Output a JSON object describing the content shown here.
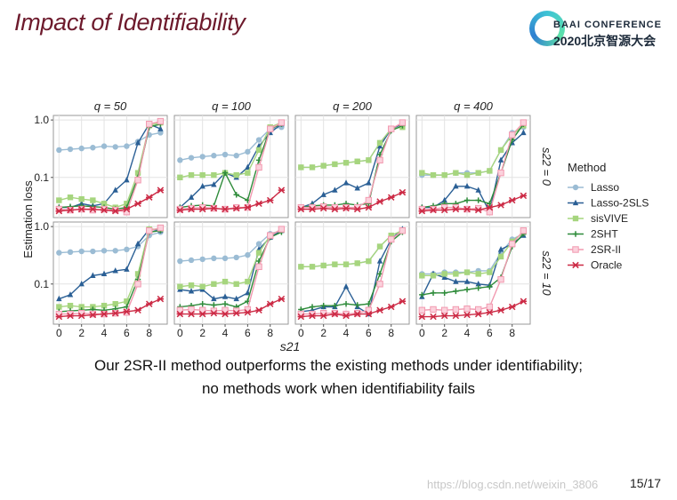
{
  "slide": {
    "title": "Impact of Identifiability",
    "logo": {
      "line1": "BAAI CONFERENCE",
      "line2": "2020北京智源大会"
    },
    "caption_line1": "Our 2SR-II method outperforms the existing methods under identifiability;",
    "caption_line2": "no methods work when identifiability fails",
    "watermark": "https://blog.csdn.net/weixin_3806",
    "page": "15/17"
  },
  "chart_data": {
    "type": "line",
    "ylabel": "Estimation loss",
    "xlabel": "s21",
    "col_titles": [
      "q = 50",
      "q = 100",
      "q = 200",
      "q = 400"
    ],
    "row_titles": [
      "s22 = 0",
      "s22 = 10"
    ],
    "x": [
      0,
      1,
      2,
      3,
      4,
      5,
      6,
      7,
      8,
      9
    ],
    "xticks": [
      0,
      2,
      4,
      6,
      8
    ],
    "yticks": [
      0.1,
      1.0
    ],
    "ytick_labels": [
      "0.1",
      "1.0"
    ],
    "ylim": [
      0.02,
      1.2
    ],
    "yscale": "log",
    "legend_title": "Method",
    "methods": [
      {
        "name": "Lasso",
        "color": "#9bbcd4",
        "marker": "circle"
      },
      {
        "name": "Lasso-2SLS",
        "color": "#2a5f95",
        "marker": "triangle"
      },
      {
        "name": "sisVIVE",
        "color": "#a6d57e",
        "marker": "square"
      },
      {
        "name": "2SHT",
        "color": "#2e8b3a",
        "marker": "plus"
      },
      {
        "name": "2SR-II",
        "color": "#f29ab0",
        "marker": "square-open"
      },
      {
        "name": "Oracle",
        "color": "#cc2a45",
        "marker": "star"
      }
    ],
    "panels": [
      [
        {
          "Lasso": [
            0.3,
            0.31,
            0.32,
            0.33,
            0.35,
            0.34,
            0.35,
            0.42,
            0.55,
            0.6
          ],
          "Lasso-2SLS": [
            0.03,
            0.03,
            0.035,
            0.032,
            0.035,
            0.06,
            0.09,
            0.4,
            0.85,
            0.7
          ],
          "sisVIVE": [
            0.04,
            0.045,
            0.042,
            0.04,
            0.035,
            0.03,
            0.035,
            0.12,
            0.8,
            0.9
          ],
          "2SHT": [
            0.03,
            0.031,
            0.032,
            0.031,
            0.03,
            0.028,
            0.03,
            0.1,
            0.75,
            0.85
          ],
          "2SR-II": [
            0.028,
            0.027,
            0.028,
            0.027,
            0.028,
            0.027,
            0.025,
            0.09,
            0.85,
            0.95
          ],
          "Oracle": [
            0.026,
            0.027,
            0.028,
            0.028,
            0.027,
            0.026,
            0.028,
            0.035,
            0.045,
            0.06
          ]
        },
        {
          "Lasso": [
            0.2,
            0.22,
            0.23,
            0.24,
            0.25,
            0.24,
            0.28,
            0.45,
            0.7,
            0.75
          ],
          "Lasso-2SLS": [
            0.03,
            0.045,
            0.07,
            0.075,
            0.12,
            0.1,
            0.15,
            0.35,
            0.6,
            0.85
          ],
          "sisVIVE": [
            0.1,
            0.11,
            0.11,
            0.11,
            0.12,
            0.11,
            0.12,
            0.3,
            0.75,
            0.9
          ],
          "2SHT": [
            0.03,
            0.032,
            0.033,
            0.032,
            0.12,
            0.05,
            0.04,
            0.2,
            0.7,
            0.85
          ],
          "2SR-II": [
            0.028,
            0.029,
            0.03,
            0.029,
            0.028,
            0.03,
            0.03,
            0.15,
            0.7,
            0.9
          ],
          "Oracle": [
            0.027,
            0.028,
            0.028,
            0.029,
            0.028,
            0.029,
            0.03,
            0.035,
            0.04,
            0.06
          ]
        },
        {
          "Lasso": [
            0.15,
            0.15,
            0.16,
            0.17,
            0.18,
            0.19,
            0.2,
            0.4,
            0.7,
            0.75
          ],
          "Lasso-2SLS": [
            0.03,
            0.035,
            0.05,
            0.06,
            0.08,
            0.065,
            0.08,
            0.35,
            0.7,
            0.85
          ],
          "sisVIVE": [
            0.15,
            0.15,
            0.16,
            0.17,
            0.18,
            0.19,
            0.2,
            0.4,
            0.7,
            0.75
          ],
          "2SHT": [
            0.03,
            0.032,
            0.033,
            0.033,
            0.035,
            0.033,
            0.035,
            0.25,
            0.65,
            0.8
          ],
          "2SR-II": [
            0.03,
            0.03,
            0.031,
            0.03,
            0.03,
            0.03,
            0.04,
            0.2,
            0.7,
            0.9
          ],
          "Oracle": [
            0.028,
            0.028,
            0.029,
            0.028,
            0.029,
            0.028,
            0.03,
            0.038,
            0.045,
            0.055
          ]
        },
        {
          "Lasso": [
            0.11,
            0.11,
            0.11,
            0.12,
            0.12,
            0.12,
            0.13,
            0.3,
            0.6,
            0.75
          ],
          "Lasso-2SLS": [
            0.03,
            0.03,
            0.04,
            0.07,
            0.07,
            0.06,
            0.025,
            0.2,
            0.4,
            0.6
          ],
          "sisVIVE": [
            0.12,
            0.11,
            0.11,
            0.12,
            0.11,
            0.12,
            0.13,
            0.3,
            0.55,
            0.8
          ],
          "2SHT": [
            0.03,
            0.032,
            0.035,
            0.035,
            0.04,
            0.04,
            0.035,
            0.12,
            0.45,
            0.85
          ],
          "2SR-II": [
            0.028,
            0.028,
            0.03,
            0.03,
            0.028,
            0.029,
            0.025,
            0.12,
            0.55,
            0.9
          ],
          "Oracle": [
            0.026,
            0.027,
            0.027,
            0.028,
            0.028,
            0.027,
            0.03,
            0.033,
            0.04,
            0.048
          ]
        }
      ],
      [
        {
          "Lasso": [
            0.35,
            0.36,
            0.37,
            0.37,
            0.38,
            0.38,
            0.4,
            0.45,
            0.7,
            0.8
          ],
          "Lasso-2SLS": [
            0.055,
            0.065,
            0.1,
            0.14,
            0.15,
            0.17,
            0.18,
            0.5,
            0.9,
            0.85
          ],
          "sisVIVE": [
            0.04,
            0.042,
            0.04,
            0.04,
            0.042,
            0.045,
            0.05,
            0.15,
            0.9,
            0.9
          ],
          "2SHT": [
            0.033,
            0.034,
            0.035,
            0.036,
            0.035,
            0.037,
            0.04,
            0.12,
            0.8,
            0.85
          ],
          "2SR-II": [
            0.03,
            0.03,
            0.031,
            0.03,
            0.03,
            0.031,
            0.032,
            0.1,
            0.85,
            0.95
          ],
          "Oracle": [
            0.027,
            0.028,
            0.028,
            0.029,
            0.03,
            0.031,
            0.033,
            0.035,
            0.045,
            0.055
          ]
        },
        {
          "Lasso": [
            0.25,
            0.26,
            0.27,
            0.28,
            0.28,
            0.29,
            0.32,
            0.5,
            0.75,
            0.85
          ],
          "Lasso-2SLS": [
            0.08,
            0.075,
            0.08,
            0.055,
            0.06,
            0.055,
            0.07,
            0.4,
            0.65,
            0.85
          ],
          "sisVIVE": [
            0.09,
            0.095,
            0.09,
            0.1,
            0.11,
            0.1,
            0.11,
            0.35,
            0.7,
            0.9
          ],
          "2SHT": [
            0.04,
            0.042,
            0.045,
            0.043,
            0.045,
            0.04,
            0.05,
            0.25,
            0.65,
            0.8
          ],
          "2SR-II": [
            0.035,
            0.036,
            0.035,
            0.034,
            0.035,
            0.034,
            0.036,
            0.2,
            0.7,
            0.9
          ],
          "Oracle": [
            0.03,
            0.03,
            0.03,
            0.031,
            0.03,
            0.031,
            0.032,
            0.035,
            0.045,
            0.055
          ]
        },
        {
          "Lasso": [
            0.2,
            0.2,
            0.21,
            0.22,
            0.22,
            0.23,
            0.25,
            0.45,
            0.7,
            0.85
          ],
          "Lasso-2SLS": [
            0.033,
            0.035,
            0.04,
            0.04,
            0.09,
            0.04,
            0.03,
            0.25,
            0.6,
            0.9
          ],
          "sisVIVE": [
            0.2,
            0.2,
            0.21,
            0.22,
            0.22,
            0.23,
            0.25,
            0.45,
            0.7,
            0.85
          ],
          "2SHT": [
            0.036,
            0.04,
            0.042,
            0.042,
            0.045,
            0.043,
            0.045,
            0.15,
            0.55,
            0.8
          ],
          "2SR-II": [
            0.03,
            0.03,
            0.031,
            0.031,
            0.03,
            0.031,
            0.035,
            0.1,
            0.6,
            0.85
          ],
          "Oracle": [
            0.027,
            0.028,
            0.028,
            0.03,
            0.028,
            0.03,
            0.03,
            0.035,
            0.04,
            0.05
          ]
        },
        {
          "Lasso": [
            0.15,
            0.15,
            0.16,
            0.16,
            0.16,
            0.17,
            0.17,
            0.35,
            0.6,
            0.75
          ],
          "Lasso-2SLS": [
            0.06,
            0.15,
            0.13,
            0.11,
            0.11,
            0.1,
            0.095,
            0.4,
            0.5,
            0.7
          ],
          "sisVIVE": [
            0.14,
            0.14,
            0.15,
            0.15,
            0.16,
            0.15,
            0.16,
            0.3,
            0.55,
            0.8
          ],
          "2SHT": [
            0.065,
            0.07,
            0.07,
            0.075,
            0.08,
            0.085,
            0.09,
            0.13,
            0.45,
            0.75
          ],
          "2SR-II": [
            0.035,
            0.036,
            0.035,
            0.036,
            0.037,
            0.036,
            0.04,
            0.12,
            0.5,
            0.85
          ],
          "Oracle": [
            0.027,
            0.027,
            0.028,
            0.028,
            0.029,
            0.03,
            0.032,
            0.035,
            0.04,
            0.05
          ]
        }
      ]
    ]
  }
}
